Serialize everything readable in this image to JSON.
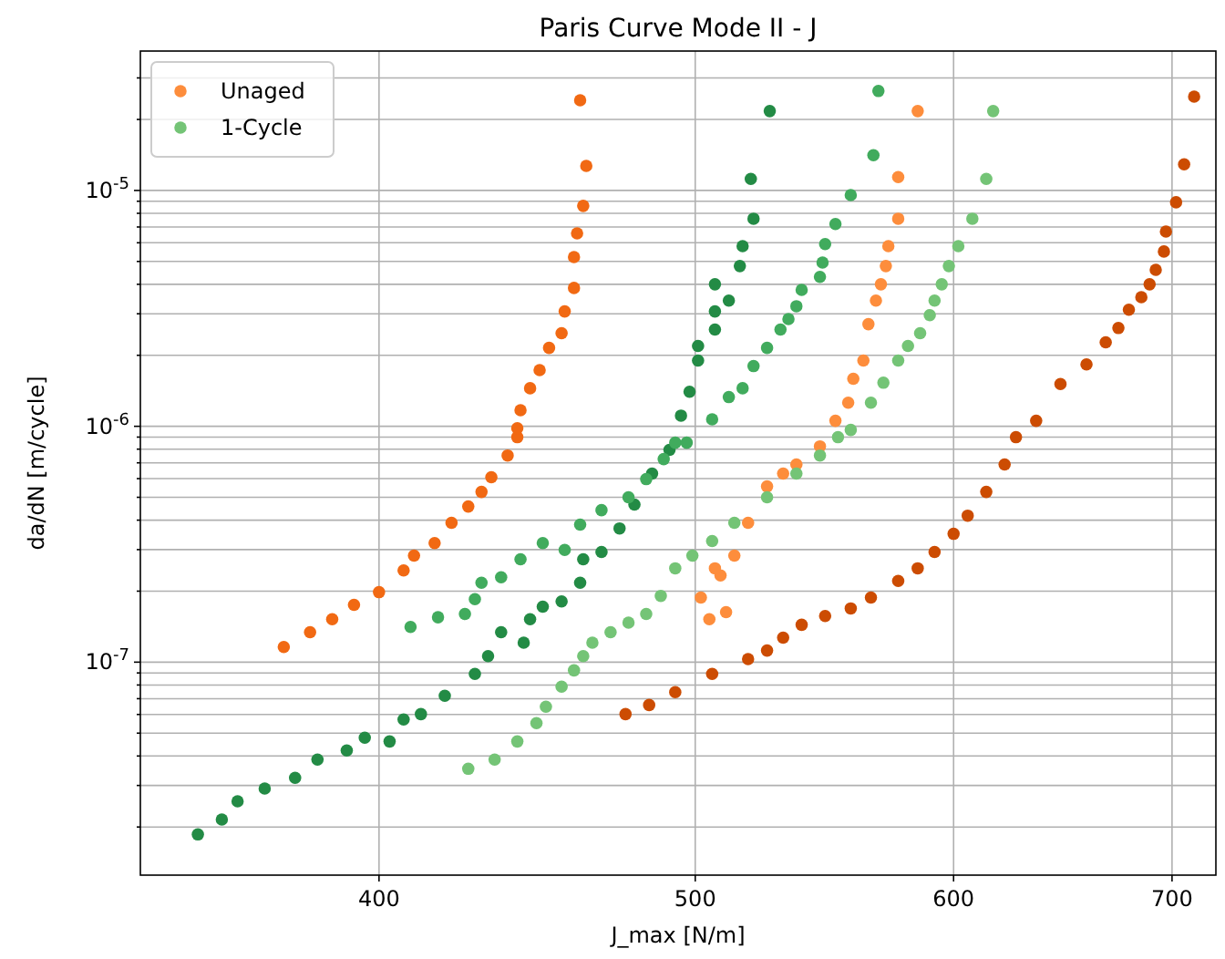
{
  "chart_data": {
    "type": "scatter",
    "title": "Paris Curve Mode II - J",
    "xlabel": "J_max [N/m]",
    "ylabel": "da/dN [m/cycle]",
    "log": "xy",
    "grid": true,
    "legend": "top left",
    "marker": "circle",
    "xlim": [
      338,
      722
    ],
    "ylim": [
      1.25e-08,
      3.9e-05
    ],
    "xticks": [
      400,
      500,
      600,
      700
    ],
    "yticks": [
      {
        "value": 2e-08,
        "label": null
      },
      {
        "value": 3e-08,
        "label": null
      },
      {
        "value": 4e-08,
        "label": null
      },
      {
        "value": 5e-08,
        "label": null
      },
      {
        "value": 6e-08,
        "label": null
      },
      {
        "value": 7e-08,
        "label": null
      },
      {
        "value": 8e-08,
        "label": null
      },
      {
        "value": 9e-08,
        "label": null
      },
      {
        "value": 1e-07,
        "label": "10$^{-7}$"
      },
      {
        "value": 2e-07,
        "label": null
      },
      {
        "value": 3e-07,
        "label": null
      },
      {
        "value": 4e-07,
        "label": null
      },
      {
        "value": 5e-07,
        "label": null
      },
      {
        "value": 6e-07,
        "label": null
      },
      {
        "value": 7e-07,
        "label": null
      },
      {
        "value": 8e-07,
        "label": null
      },
      {
        "value": 9e-07,
        "label": null
      },
      {
        "value": 1e-06,
        "label": "10$^{-6}$"
      },
      {
        "value": 2e-06,
        "label": null
      },
      {
        "value": 3e-06,
        "label": null
      },
      {
        "value": 4e-06,
        "label": null
      },
      {
        "value": 5e-06,
        "label": null
      },
      {
        "value": 6e-06,
        "label": null
      },
      {
        "value": 7e-06,
        "label": null
      },
      {
        "value": 8e-06,
        "label": null
      },
      {
        "value": 9e-06,
        "label": null
      },
      {
        "value": 1e-05,
        "label": "10$^{-5}$"
      },
      {
        "value": 2e-05,
        "label": null
      },
      {
        "value": 3e-05,
        "label": null
      }
    ],
    "series": [
      {
        "name": "Unaged",
        "color": "#fd8d3c",
        "x": [
          505,
          511,
          502,
          509,
          507,
          514,
          519,
          526,
          532,
          537,
          546,
          552,
          557,
          559,
          563,
          565,
          568,
          570,
          572,
          573,
          577,
          577,
          585
        ],
        "values": [
          1.52e-07,
          1.63e-07,
          1.88e-07,
          2.33e-07,
          2.5e-07,
          2.83e-07,
          3.9e-07,
          5.56e-07,
          6.3e-07,
          6.89e-07,
          8.22e-07,
          1.055e-06,
          1.26e-06,
          1.59e-06,
          1.9e-06,
          2.71e-06,
          3.41e-06,
          4e-06,
          4.78e-06,
          5.81e-06,
          7.59e-06,
          1.14e-05,
          2.17e-05
        ]
      },
      {
        "color": "#f16913",
        "x": [
          374,
          381,
          387,
          393,
          400,
          407,
          410,
          416,
          421,
          426,
          430,
          433,
          438,
          441,
          441,
          442,
          445,
          448,
          451,
          455,
          456,
          459,
          459,
          460,
          462,
          463,
          461
        ],
        "values": [
          1.16e-07,
          1.34e-07,
          1.52e-07,
          1.75e-07,
          1.98e-07,
          2.45e-07,
          2.83e-07,
          3.2e-07,
          3.9e-07,
          4.57e-07,
          5.27e-07,
          6.08e-07,
          7.52e-07,
          8.99e-07,
          9.82e-07,
          1.17e-06,
          1.45e-06,
          1.73e-06,
          2.15e-06,
          2.48e-06,
          3.07e-06,
          3.86e-06,
          5.22e-06,
          6.58e-06,
          8.6e-06,
          1.27e-05,
          2.41e-05
        ]
      },
      {
        "color": "#cc4c02",
        "x": [
          476,
          484,
          493,
          506,
          519,
          526,
          532,
          539,
          548,
          558,
          566,
          577,
          585,
          592,
          600,
          606,
          614,
          622,
          627,
          636,
          647,
          659,
          668,
          674,
          679,
          685,
          689,
          692,
          696,
          697,
          702,
          706,
          711
        ],
        "values": [
          6.02e-08,
          6.58e-08,
          7.46e-08,
          8.91e-08,
          1.03e-07,
          1.12e-07,
          1.27e-07,
          1.44e-07,
          1.57e-07,
          1.69e-07,
          1.88e-07,
          2.21e-07,
          2.5e-07,
          2.93e-07,
          3.5e-07,
          4.18e-07,
          5.27e-07,
          6.89e-07,
          8.99e-07,
          1.055e-06,
          1.51e-06,
          1.83e-06,
          2.27e-06,
          2.61e-06,
          3.12e-06,
          3.53e-06,
          4e-06,
          4.61e-06,
          5.51e-06,
          6.7e-06,
          8.91e-06,
          1.29e-05,
          2.5e-05
        ]
      },
      {
        "color": "#238b45",
        "x": [
          352,
          358,
          362,
          369,
          377,
          383,
          391,
          396,
          403,
          407,
          412,
          419,
          428,
          432,
          436,
          443,
          445,
          449,
          455,
          461,
          462,
          468,
          474,
          479,
          485,
          491,
          495,
          498,
          501,
          501,
          507,
          507,
          512,
          507,
          516,
          517,
          521,
          520,
          527
        ],
        "values": [
          1.86e-08,
          2.15e-08,
          2.57e-08,
          2.91e-08,
          3.23e-08,
          3.86e-08,
          4.22e-08,
          4.78e-08,
          4.61e-08,
          5.71e-08,
          6.02e-08,
          7.2e-08,
          8.91e-08,
          1.06e-07,
          1.34e-07,
          1.21e-07,
          1.52e-07,
          1.72e-07,
          1.81e-07,
          2.17e-07,
          2.73e-07,
          2.93e-07,
          3.69e-07,
          4.66e-07,
          6.3e-07,
          7.94e-07,
          1.11e-06,
          1.4e-06,
          1.9e-06,
          2.19e-06,
          2.57e-06,
          3.07e-06,
          3.41e-06,
          4e-06,
          4.78e-06,
          5.81e-06,
          7.59e-06,
          1.12e-05,
          2.17e-05
        ]
      },
      {
        "color": "#41ab5d",
        "x": [
          409,
          417,
          425,
          428,
          430,
          436,
          442,
          449,
          456,
          461,
          468,
          477,
          483,
          489,
          493,
          497,
          506,
          512,
          517,
          521,
          526,
          531,
          534,
          537,
          539,
          546,
          547,
          548,
          552,
          558,
          567,
          569
        ],
        "values": [
          1.41e-07,
          1.55e-07,
          1.6e-07,
          1.85e-07,
          2.17e-07,
          2.29e-07,
          2.73e-07,
          3.2e-07,
          2.99e-07,
          3.83e-07,
          4.41e-07,
          5e-07,
          5.97e-07,
          7.26e-07,
          8.52e-07,
          8.52e-07,
          1.07e-06,
          1.33e-06,
          1.45e-06,
          1.8e-06,
          2.15e-06,
          2.57e-06,
          2.85e-06,
          3.23e-06,
          3.79e-06,
          4.3e-06,
          4.95e-06,
          5.92e-06,
          7.2e-06,
          9.56e-06,
          1.41e-05,
          2.64e-05
        ]
      },
      {
        "name": "1-Cycle",
        "color": "#74c476",
        "x": [
          426,
          434,
          441,
          447,
          450,
          455,
          459,
          462,
          465,
          471,
          477,
          483,
          488,
          493,
          499,
          506,
          514,
          526,
          537,
          546,
          553,
          558,
          566,
          571,
          577,
          581,
          586,
          590,
          592,
          595,
          598,
          602,
          608,
          614,
          617
        ],
        "values": [
          3.53e-08,
          3.86e-08,
          4.61e-08,
          5.51e-08,
          6.47e-08,
          7.87e-08,
          9.23e-08,
          1.06e-07,
          1.21e-07,
          1.34e-07,
          1.47e-07,
          1.6e-07,
          1.91e-07,
          2.5e-07,
          2.83e-07,
          3.26e-07,
          3.9e-07,
          5e-07,
          6.3e-07,
          7.52e-07,
          8.99e-07,
          9.65e-07,
          1.26e-06,
          1.53e-06,
          1.9e-06,
          2.19e-06,
          2.48e-06,
          2.96e-06,
          3.41e-06,
          4e-06,
          4.78e-06,
          5.81e-06,
          7.59e-06,
          1.12e-05,
          2.17e-05
        ]
      }
    ]
  }
}
